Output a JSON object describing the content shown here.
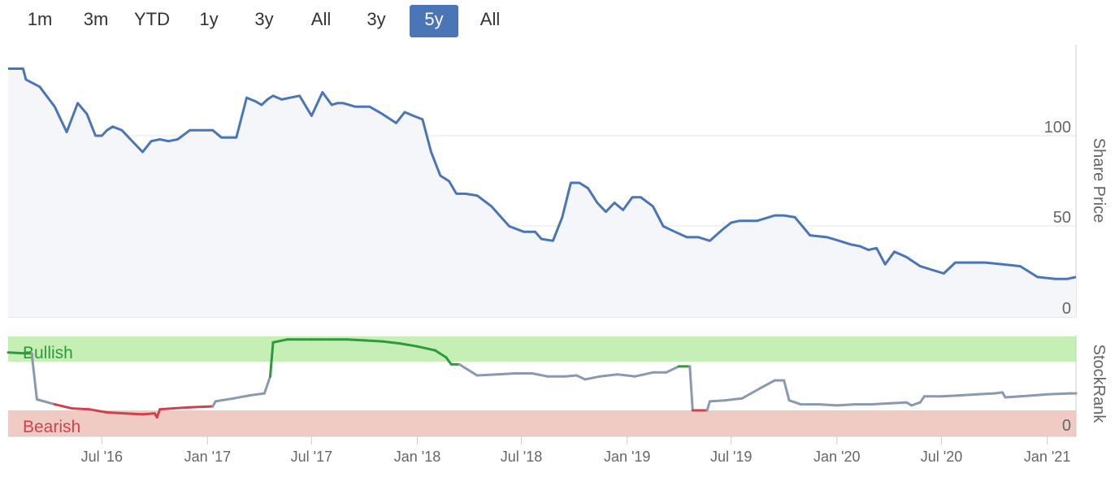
{
  "range_selector": {
    "buttons": [
      {
        "label": "1m",
        "active": false
      },
      {
        "label": "3m",
        "active": false
      },
      {
        "label": "YTD",
        "active": false
      },
      {
        "label": "1y",
        "active": false
      },
      {
        "label": "3y",
        "active": false
      },
      {
        "label": "All",
        "active": false
      },
      {
        "label": "3y",
        "active": false
      },
      {
        "label": "5y",
        "active": true
      },
      {
        "label": "All",
        "active": false
      }
    ]
  },
  "colors": {
    "price_line": "#4a76b8",
    "price_fill": "#f5f6fa",
    "bullish_zone": "#c6efb6",
    "bearish_zone": "#f0cbc4",
    "bullish_line": "#2e9a3c",
    "bearish_line": "#d0414b",
    "neutral_line": "#8a99b0",
    "bullish_text": "#2e9a3c",
    "bearish_text": "#d0414b",
    "grid": "#e6e6e6"
  },
  "chart_data": [
    {
      "type": "line",
      "ylabel": "Share Price",
      "yticks": [
        "100",
        "50",
        "0"
      ],
      "ylim": [
        0,
        137
      ],
      "xlim": [
        "2016-01-20",
        "2021-02-20"
      ],
      "grid": true,
      "series": [
        {
          "x": [
            "2016-01-20",
            "2016-02-15",
            "2016-02-20",
            "2016-03-15",
            "2016-04-10",
            "2016-05-01",
            "2016-05-20",
            "2016-06-05",
            "2016-06-20",
            "2016-07-01",
            "2016-07-10",
            "2016-07-20",
            "2016-08-05",
            "2016-08-20",
            "2016-09-10",
            "2016-09-25",
            "2016-10-10",
            "2016-10-25",
            "2016-11-10",
            "2016-12-01",
            "2016-12-20",
            "2017-01-10",
            "2017-01-25",
            "2017-02-20",
            "2017-03-10",
            "2017-03-25",
            "2017-04-05",
            "2017-04-15",
            "2017-04-25",
            "2017-05-10",
            "2017-05-25",
            "2017-06-10",
            "2017-07-01",
            "2017-07-20",
            "2017-08-05",
            "2017-08-15",
            "2017-08-25",
            "2017-09-15",
            "2017-10-10",
            "2017-11-01",
            "2017-11-25",
            "2017-12-10",
            "2017-12-25",
            "2018-01-10",
            "2018-01-25",
            "2018-02-10",
            "2018-02-25",
            "2018-03-10",
            "2018-03-25",
            "2018-04-15",
            "2018-05-10",
            "2018-06-10",
            "2018-07-05",
            "2018-07-25",
            "2018-08-05",
            "2018-08-25",
            "2018-09-10",
            "2018-09-25",
            "2018-10-10",
            "2018-10-25",
            "2018-11-10",
            "2018-11-25",
            "2018-12-10",
            "2018-12-25",
            "2019-01-10",
            "2019-01-25",
            "2019-02-15",
            "2019-03-05",
            "2019-03-25",
            "2019-04-15",
            "2019-05-05",
            "2019-05-25",
            "2019-06-15",
            "2019-07-01",
            "2019-07-15",
            "2019-08-15",
            "2019-09-15",
            "2019-10-01",
            "2019-10-20",
            "2019-11-15",
            "2019-12-15",
            "2020-01-05",
            "2020-01-25",
            "2020-02-10",
            "2020-02-25",
            "2020-03-10",
            "2020-03-25",
            "2020-04-10",
            "2020-05-01",
            "2020-05-25",
            "2020-07-05",
            "2020-07-25",
            "2020-08-15",
            "2020-09-15",
            "2020-10-15",
            "2020-11-15",
            "2020-12-15",
            "2021-01-15",
            "2021-02-05",
            "2021-02-20"
          ],
          "y": [
            137,
            137,
            131,
            127,
            116,
            102,
            118,
            112,
            100,
            100,
            103,
            105,
            103,
            98,
            91,
            97,
            98,
            97,
            98,
            103,
            103,
            103,
            99,
            99,
            121,
            119,
            117,
            120,
            122,
            120,
            121,
            122,
            111,
            124,
            117,
            118,
            118,
            116,
            116,
            112,
            107,
            113,
            111,
            109,
            91,
            78,
            75,
            68,
            68,
            67,
            61,
            50,
            47,
            47,
            43,
            42,
            55,
            74,
            74,
            71,
            63,
            58,
            63,
            59,
            66,
            66,
            61,
            50,
            47,
            44,
            44,
            42,
            48,
            52,
            53,
            53,
            56,
            56,
            55,
            45,
            44,
            42,
            40,
            39,
            37,
            38,
            29,
            36,
            33,
            28,
            24,
            30,
            30,
            30,
            29,
            28,
            22,
            21,
            21,
            22
          ]
        }
      ]
    },
    {
      "type": "line",
      "ylabel": "StockRank",
      "ytick": "0",
      "ylim": [
        0,
        100
      ],
      "zones": [
        {
          "label": "Bullish",
          "range": [
            70,
            100
          ]
        },
        {
          "label": "Bearish",
          "range": [
            0,
            30
          ]
        }
      ],
      "series": [
        {
          "x": [
            "2016-01-20",
            "2016-02-20",
            "2016-03-01",
            "2016-03-10",
            "2016-04-10",
            "2016-05-10",
            "2016-06-10",
            "2016-07-10",
            "2016-08-10",
            "2016-09-10",
            "2016-10-01",
            "2016-10-05",
            "2016-10-10",
            "2016-11-01",
            "2016-12-01",
            "2017-01-10",
            "2017-01-15",
            "2017-02-15",
            "2017-03-15",
            "2017-04-10",
            "2017-04-20",
            "2017-04-25",
            "2017-05-20",
            "2017-07-01",
            "2017-08-01",
            "2017-09-01",
            "2017-10-01",
            "2017-11-01",
            "2017-12-01",
            "2018-01-01",
            "2018-02-01",
            "2018-02-20",
            "2018-03-01",
            "2018-03-15",
            "2018-04-15",
            "2018-05-20",
            "2018-06-20",
            "2018-07-20",
            "2018-08-15",
            "2018-09-15",
            "2018-10-05",
            "2018-10-20",
            "2018-11-15",
            "2018-12-15",
            "2019-01-15",
            "2019-02-15",
            "2019-03-10",
            "2019-04-01",
            "2019-04-20",
            "2019-04-25",
            "2019-05-20",
            "2019-05-25",
            "2019-06-20",
            "2019-07-20",
            "2019-08-20",
            "2019-09-15",
            "2019-10-01",
            "2019-10-10",
            "2019-10-30",
            "2019-12-01",
            "2020-01-01",
            "2020-02-01",
            "2020-03-01",
            "2020-04-01",
            "2020-05-01",
            "2020-05-10",
            "2020-05-25",
            "2020-06-01",
            "2020-07-01",
            "2020-08-01",
            "2020-09-01",
            "2020-10-01",
            "2020-10-15",
            "2020-10-20",
            "2020-11-15",
            "2021-01-01",
            "2021-02-10",
            "2021-02-20"
          ],
          "y": [
            84,
            83,
            83,
            37,
            32,
            28,
            27,
            24,
            23,
            22,
            23,
            19,
            27,
            28,
            29,
            30,
            35,
            38,
            41,
            43,
            60,
            94,
            97,
            97,
            97,
            97,
            96,
            95,
            93,
            90,
            86,
            79,
            72,
            72,
            61,
            62,
            63,
            63,
            60,
            60,
            61,
            57,
            60,
            62,
            60,
            64,
            64,
            70,
            70,
            26,
            26,
            35,
            36,
            38,
            48,
            56,
            56,
            36,
            32,
            32,
            31,
            32,
            32,
            33,
            34,
            31,
            34,
            40,
            40,
            41,
            42,
            43,
            44,
            39,
            40,
            42,
            43,
            43
          ]
        }
      ]
    }
  ],
  "x_axis_labels": [
    "Jul '16",
    "Jan '17",
    "Jul '17",
    "Jan '18",
    "Jul '18",
    "Jan '19",
    "Jul '19",
    "Jan '20",
    "Jul '20",
    "Jan '21"
  ],
  "x_axis_label_dates": [
    "2016-07-01",
    "2017-01-01",
    "2017-07-01",
    "2018-01-01",
    "2018-07-01",
    "2019-01-01",
    "2019-07-01",
    "2020-01-01",
    "2020-07-01",
    "2021-01-01"
  ]
}
